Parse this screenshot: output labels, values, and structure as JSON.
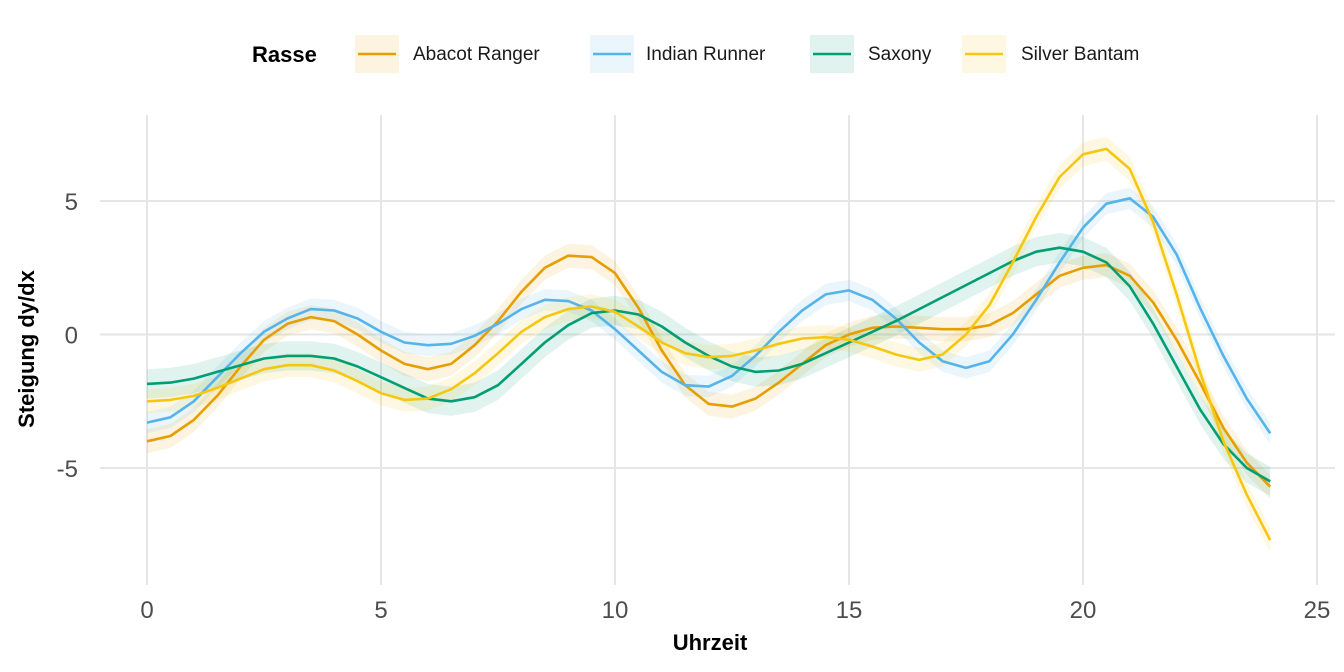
{
  "chart_data": {
    "type": "line",
    "xlabel": "Uhrzeit",
    "ylabel": "Steigung dy/dx",
    "xlim": [
      0,
      25
    ],
    "ylim": [
      -8.8,
      8
    ],
    "xticks": [
      0,
      5,
      10,
      15,
      20,
      25
    ],
    "yticks": [
      -5,
      0,
      5
    ],
    "xtick_labels": [
      "0",
      "5",
      "10",
      "15",
      "20",
      "25"
    ],
    "ytick_labels": [
      "-5",
      "0",
      "5"
    ],
    "grid": true,
    "legend": {
      "title": "Rasse",
      "position": "top"
    },
    "x": [
      0,
      0.5,
      1,
      1.5,
      2,
      2.5,
      3,
      3.5,
      4,
      4.5,
      5,
      5.5,
      6,
      6.5,
      7,
      7.5,
      8,
      8.5,
      9,
      9.5,
      10,
      10.5,
      11,
      11.5,
      12,
      12.5,
      13,
      13.5,
      14,
      14.5,
      15,
      15.5,
      16,
      16.5,
      17,
      17.5,
      18,
      18.5,
      19,
      19.5,
      20,
      20.5,
      21,
      21.5,
      22,
      22.5,
      23,
      23.5,
      24
    ],
    "series": [
      {
        "name": "Abacot Ranger",
        "color": "#E69F00",
        "band": 0.45,
        "values": [
          -4.0,
          -3.8,
          -3.2,
          -2.3,
          -1.2,
          -0.2,
          0.4,
          0.65,
          0.5,
          0.0,
          -0.6,
          -1.1,
          -1.3,
          -1.1,
          -0.4,
          0.5,
          1.6,
          2.5,
          2.95,
          2.9,
          2.3,
          1.0,
          -0.6,
          -1.9,
          -2.6,
          -2.7,
          -2.4,
          -1.8,
          -1.1,
          -0.4,
          0.0,
          0.25,
          0.3,
          0.25,
          0.2,
          0.2,
          0.35,
          0.8,
          1.5,
          2.2,
          2.5,
          2.6,
          2.2,
          1.2,
          -0.2,
          -1.8,
          -3.5,
          -4.8,
          -5.7
        ]
      },
      {
        "name": "Indian Runner",
        "color": "#56B4E9",
        "band": 0.4,
        "values": [
          -3.3,
          -3.1,
          -2.5,
          -1.6,
          -0.7,
          0.1,
          0.6,
          0.95,
          0.9,
          0.6,
          0.1,
          -0.3,
          -0.4,
          -0.35,
          -0.05,
          0.4,
          0.95,
          1.3,
          1.25,
          0.9,
          0.2,
          -0.6,
          -1.4,
          -1.9,
          -1.95,
          -1.55,
          -0.8,
          0.1,
          0.9,
          1.5,
          1.65,
          1.3,
          0.6,
          -0.3,
          -1.0,
          -1.25,
          -1.0,
          0.0,
          1.3,
          2.7,
          4.0,
          4.9,
          5.1,
          4.4,
          3.0,
          1.0,
          -0.8,
          -2.4,
          -3.7
        ]
      },
      {
        "name": "Saxony",
        "color": "#009E73",
        "band": 0.55,
        "values": [
          -1.85,
          -1.8,
          -1.65,
          -1.4,
          -1.15,
          -0.9,
          -0.8,
          -0.8,
          -0.9,
          -1.2,
          -1.6,
          -2.0,
          -2.4,
          -2.5,
          -2.35,
          -1.9,
          -1.1,
          -0.3,
          0.35,
          0.8,
          0.9,
          0.75,
          0.3,
          -0.3,
          -0.8,
          -1.2,
          -1.4,
          -1.35,
          -1.1,
          -0.7,
          -0.3,
          0.1,
          0.5,
          0.95,
          1.4,
          1.85,
          2.3,
          2.75,
          3.1,
          3.25,
          3.1,
          2.7,
          1.8,
          0.4,
          -1.2,
          -2.8,
          -4.1,
          -5.0,
          -5.5
        ]
      },
      {
        "name": "Silver Bantam",
        "color": "#F5C710",
        "band": 0.45,
        "values": [
          -2.5,
          -2.45,
          -2.3,
          -2.0,
          -1.65,
          -1.3,
          -1.15,
          -1.15,
          -1.35,
          -1.75,
          -2.2,
          -2.45,
          -2.4,
          -2.05,
          -1.45,
          -0.7,
          0.1,
          0.65,
          0.95,
          1.05,
          0.85,
          0.3,
          -0.3,
          -0.7,
          -0.85,
          -0.8,
          -0.6,
          -0.35,
          -0.15,
          -0.1,
          -0.2,
          -0.45,
          -0.75,
          -0.95,
          -0.75,
          0.0,
          1.1,
          2.7,
          4.4,
          5.9,
          6.75,
          6.95,
          6.2,
          4.2,
          1.5,
          -1.4,
          -4.0,
          -6.0,
          -7.7
        ]
      }
    ]
  }
}
